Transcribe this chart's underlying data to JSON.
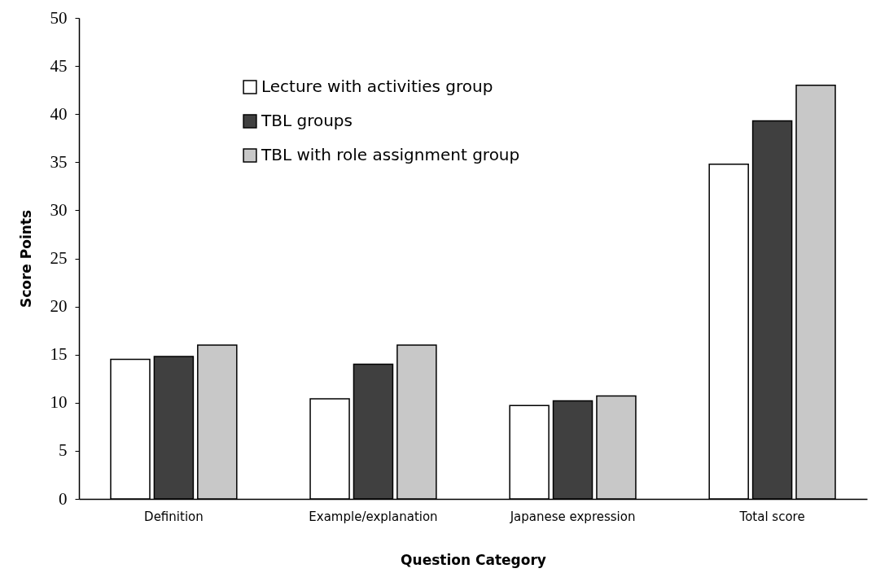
{
  "chart_data": {
    "type": "bar",
    "xlabel": "Question Category",
    "ylabel": "Score Points",
    "categories": [
      "Definition",
      "Example/explanation",
      "Japanese expression",
      "Total score"
    ],
    "series": [
      {
        "name": "Lecture with activities group",
        "color": "#ffffff",
        "values": [
          14.5,
          10.4,
          9.7,
          34.8
        ]
      },
      {
        "name": "TBL groups",
        "color": "#404040",
        "values": [
          14.8,
          14.0,
          10.2,
          39.3
        ]
      },
      {
        "name": "TBL with role assignment group",
        "color": "#c8c8c8",
        "values": [
          16.0,
          16.0,
          10.7,
          43.0
        ]
      }
    ],
    "ylim": [
      0,
      50
    ],
    "yticks": [
      0,
      5,
      10,
      15,
      20,
      25,
      30,
      35,
      40,
      45,
      50
    ],
    "grid": false,
    "legend": "top left"
  }
}
